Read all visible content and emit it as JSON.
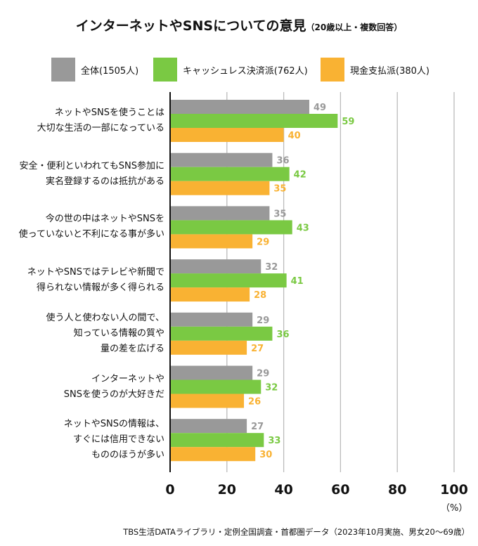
{
  "title": {
    "main": "インターネットやSNSについての意見",
    "sub": "（20歳以上・複数回答）"
  },
  "colors": {
    "all": "#999999",
    "cashless": "#7ac943",
    "cash": "#f9b233",
    "grid": "#bbbbbb"
  },
  "chart_data": {
    "type": "bar",
    "orientation": "horizontal",
    "categories": [
      [
        "ネットやSNSを使うことは",
        "大切な生活の一部になっている"
      ],
      [
        "安全・便利といわれてもSNS参加に",
        "実名登録するのは抵抗がある"
      ],
      [
        "今の世の中はネットやSNSを",
        "使っていないと不利になる事が多い"
      ],
      [
        "ネットやSNSではテレビや新聞で",
        "得られない情報が多く得られる"
      ],
      [
        "使う人と使わない人の間で、",
        "知っている情報の質や",
        "量の差を広げる"
      ],
      [
        "インターネットや",
        "SNSを使うのが大好きだ"
      ],
      [
        "ネットやSNSの情報は、",
        "すぐには信用できない",
        "もののほうが多い"
      ]
    ],
    "series": [
      {
        "name": "全体(1505人)",
        "values": [
          49,
          36,
          35,
          32,
          29,
          29,
          27
        ]
      },
      {
        "name": "キャッシュレス決済派(762人)",
        "values": [
          59,
          42,
          43,
          41,
          36,
          32,
          33
        ]
      },
      {
        "name": "現金支払派(380人)",
        "values": [
          40,
          35,
          29,
          28,
          27,
          26,
          30
        ]
      }
    ],
    "xlim": [
      0,
      100
    ],
    "xticks": [
      "0",
      "20",
      "40",
      "60",
      "80",
      "100"
    ],
    "unit": "（%）",
    "grid": true,
    "legend_position": "top",
    "source": "TBS生活DATAライブラリ・定例全国調査・首都圏データ（2023年10月実施、男女20～69歳）"
  }
}
